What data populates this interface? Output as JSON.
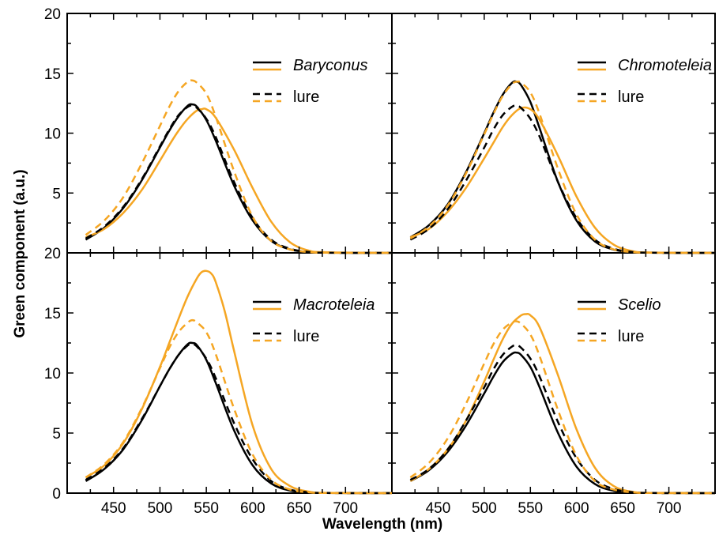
{
  "chart_data": {
    "type": "line",
    "ylabel": "Green component (a.u.)",
    "xlabel": "Wavelength (nm)",
    "xlim": [
      400,
      750
    ],
    "ylim": [
      0,
      20
    ],
    "xticks": [
      450,
      500,
      550,
      600,
      650,
      700
    ],
    "yticks": [
      0,
      5,
      10,
      15,
      20
    ],
    "grid": false,
    "legend_position": "top-right",
    "colors": {
      "black": "#000000",
      "orange": "#F5A623"
    },
    "panels": [
      {
        "id": "baryconus",
        "species_label": "Baryconus",
        "lure_label": "lure",
        "series": [
          {
            "name": "Baryconus",
            "color": "#000000",
            "style": "solid",
            "x": [
              420,
              440,
              460,
              480,
              500,
              510,
              520,
              530,
              535,
              540,
              550,
              560,
              580,
              600,
              620,
              640,
              660,
              680,
              750
            ],
            "y": [
              1.1,
              2.1,
              3.7,
              6.0,
              8.8,
              10.2,
              11.4,
              12.3,
              12.4,
              12.2,
              11.1,
              9.4,
              5.6,
              2.7,
              1.0,
              0.3,
              0.07,
              0.01,
              0
            ]
          },
          {
            "name": "Baryconus",
            "color": "#F5A623",
            "style": "solid",
            "x": [
              420,
              440,
              460,
              480,
              500,
              510,
              520,
              530,
              540,
              545,
              550,
              560,
              580,
              600,
              620,
              640,
              660,
              680,
              750
            ],
            "y": [
              1.3,
              2.0,
              3.3,
              5.2,
              7.7,
              9.0,
              10.2,
              11.2,
              11.9,
              12.0,
              12.0,
              11.3,
              8.6,
              5.4,
              2.6,
              0.9,
              0.2,
              0.05,
              0
            ]
          },
          {
            "name": "lure",
            "color": "#000000",
            "style": "dashed",
            "x": [
              420,
              440,
              460,
              480,
              500,
              510,
              520,
              530,
              535,
              540,
              550,
              560,
              580,
              600,
              620,
              640,
              660,
              680,
              750
            ],
            "y": [
              1.2,
              2.2,
              3.8,
              6.1,
              8.9,
              10.3,
              11.5,
              12.2,
              12.3,
              12.1,
              11.2,
              9.7,
              5.9,
              2.9,
              1.1,
              0.35,
              0.08,
              0.01,
              0
            ]
          },
          {
            "name": "lure",
            "color": "#F5A623",
            "style": "dashed",
            "x": [
              420,
              440,
              460,
              480,
              500,
              510,
              520,
              530,
              535,
              540,
              550,
              560,
              580,
              600,
              620,
              640,
              660,
              680,
              750
            ],
            "y": [
              1.5,
              2.7,
              4.6,
              7.4,
              10.6,
              12.2,
              13.5,
              14.3,
              14.4,
              14.2,
              13.3,
              11.4,
              6.8,
              3.0,
              1.0,
              0.3,
              0.07,
              0.01,
              0
            ]
          }
        ]
      },
      {
        "id": "chromoteleia",
        "species_label": "Chromoteleia",
        "lure_label": "lure",
        "series": [
          {
            "name": "Chromoteleia",
            "color": "#000000",
            "style": "solid",
            "x": [
              420,
              440,
              460,
              480,
              500,
              510,
              520,
              530,
              535,
              540,
              550,
              560,
              580,
              600,
              620,
              640,
              660,
              680,
              750
            ],
            "y": [
              1.3,
              2.3,
              4.0,
              6.7,
              10.0,
              11.7,
              13.2,
              14.2,
              14.3,
              14.0,
              12.6,
              10.4,
              5.9,
              2.7,
              0.95,
              0.28,
              0.06,
              0.01,
              0
            ]
          },
          {
            "name": "Chromoteleia",
            "color": "#F5A623",
            "style": "solid",
            "x": [
              420,
              440,
              460,
              480,
              500,
              510,
              520,
              530,
              540,
              550,
              560,
              580,
              600,
              620,
              640,
              660,
              680,
              750
            ],
            "y": [
              1.3,
              2.0,
              3.4,
              5.4,
              7.9,
              9.2,
              10.5,
              11.5,
              12.1,
              12.0,
              11.1,
              8.1,
              4.7,
              2.1,
              0.7,
              0.15,
              0.03,
              0
            ]
          },
          {
            "name": "lure",
            "color": "#000000",
            "style": "dashed",
            "x": [
              420,
              440,
              460,
              480,
              500,
              510,
              520,
              530,
              535,
              540,
              550,
              560,
              580,
              600,
              620,
              640,
              660,
              680,
              750
            ],
            "y": [
              1.1,
              2.0,
              3.6,
              6.0,
              8.8,
              10.3,
              11.5,
              12.2,
              12.3,
              12.1,
              11.2,
              9.7,
              5.9,
              2.9,
              1.1,
              0.35,
              0.08,
              0.01,
              0
            ]
          },
          {
            "name": "lure",
            "color": "#F5A623",
            "style": "dashed",
            "x": [
              420,
              440,
              460,
              480,
              500,
              510,
              520,
              530,
              535,
              540,
              550,
              560,
              580,
              600,
              620,
              640,
              660,
              680,
              750
            ],
            "y": [
              1.2,
              2.2,
              3.9,
              6.6,
              9.9,
              11.6,
              13.1,
              14.1,
              14.3,
              14.2,
              13.4,
              11.6,
              7.0,
              3.2,
              1.1,
              0.3,
              0.07,
              0.01,
              0
            ]
          }
        ]
      },
      {
        "id": "macroteleia",
        "species_label": "Macroteleia",
        "lure_label": "lure",
        "series": [
          {
            "name": "Macroteleia",
            "color": "#000000",
            "style": "solid",
            "x": [
              420,
              440,
              460,
              480,
              500,
              510,
              520,
              530,
              535,
              540,
              550,
              560,
              580,
              600,
              620,
              640,
              660,
              680,
              750
            ],
            "y": [
              1.0,
              2.0,
              3.6,
              6.0,
              8.9,
              10.3,
              11.5,
              12.4,
              12.5,
              12.3,
              11.1,
              9.2,
              5.2,
              2.3,
              0.8,
              0.22,
              0.05,
              0.01,
              0
            ]
          },
          {
            "name": "Macroteleia",
            "color": "#F5A623",
            "style": "solid",
            "x": [
              420,
              440,
              460,
              480,
              500,
              510,
              520,
              530,
              540,
              545,
              550,
              555,
              560,
              570,
              580,
              600,
              620,
              640,
              660,
              680,
              750
            ],
            "y": [
              1.3,
              2.3,
              4.1,
              6.9,
              10.5,
              12.5,
              14.5,
              16.4,
              17.9,
              18.4,
              18.5,
              18.3,
              17.6,
              15.1,
              11.8,
              5.6,
              2.0,
              0.6,
              0.13,
              0.02,
              0
            ]
          },
          {
            "name": "lure",
            "color": "#000000",
            "style": "dashed",
            "x": [
              420,
              440,
              460,
              480,
              500,
              510,
              520,
              530,
              535,
              540,
              550,
              560,
              580,
              600,
              620,
              640,
              660,
              680,
              750
            ],
            "y": [
              1.1,
              2.1,
              3.7,
              6.1,
              8.9,
              10.3,
              11.5,
              12.3,
              12.4,
              12.2,
              11.2,
              9.6,
              5.8,
              2.8,
              1.0,
              0.3,
              0.07,
              0.01,
              0
            ]
          },
          {
            "name": "lure",
            "color": "#F5A623",
            "style": "dashed",
            "x": [
              420,
              440,
              460,
              480,
              500,
              510,
              520,
              530,
              535,
              540,
              550,
              560,
              580,
              600,
              620,
              640,
              660,
              680,
              750
            ],
            "y": [
              1.3,
              2.4,
              4.2,
              7.0,
              10.4,
              12.1,
              13.4,
              14.2,
              14.4,
              14.2,
              13.4,
              11.6,
              7.0,
              3.2,
              1.1,
              0.3,
              0.07,
              0.01,
              0
            ]
          }
        ]
      },
      {
        "id": "scelio",
        "species_label": "Scelio",
        "lure_label": "lure",
        "series": [
          {
            "name": "Scelio",
            "color": "#000000",
            "style": "solid",
            "x": [
              420,
              440,
              460,
              480,
              500,
              510,
              520,
              530,
              535,
              540,
              550,
              560,
              580,
              600,
              620,
              640,
              660,
              680,
              750
            ],
            "y": [
              1.0,
              1.9,
              3.4,
              5.6,
              8.3,
              9.7,
              10.9,
              11.6,
              11.7,
              11.5,
              10.5,
              8.8,
              5.0,
              2.2,
              0.75,
              0.2,
              0.04,
              0.01,
              0
            ]
          },
          {
            "name": "Scelio",
            "color": "#F5A623",
            "style": "solid",
            "x": [
              420,
              440,
              460,
              480,
              500,
              510,
              520,
              530,
              540,
              545,
              550,
              560,
              580,
              600,
              620,
              640,
              660,
              680,
              750
            ],
            "y": [
              1.0,
              2.0,
              3.6,
              6.0,
              9.3,
              11.1,
              12.8,
              14.1,
              14.8,
              14.9,
              14.8,
              13.8,
              9.8,
              5.3,
              2.1,
              0.6,
              0.12,
              0.02,
              0
            ]
          },
          {
            "name": "lure",
            "color": "#000000",
            "style": "dashed",
            "x": [
              420,
              440,
              460,
              480,
              500,
              510,
              520,
              530,
              535,
              540,
              550,
              560,
              580,
              600,
              620,
              640,
              660,
              680,
              750
            ],
            "y": [
              1.1,
              2.0,
              3.6,
              6.0,
              8.8,
              10.3,
              11.5,
              12.2,
              12.3,
              12.1,
              11.2,
              9.7,
              5.9,
              2.9,
              1.1,
              0.35,
              0.08,
              0.01,
              0
            ]
          },
          {
            "name": "lure",
            "color": "#F5A623",
            "style": "dashed",
            "x": [
              420,
              440,
              460,
              480,
              500,
              510,
              520,
              530,
              535,
              540,
              550,
              560,
              580,
              600,
              620,
              640,
              660,
              680,
              750
            ],
            "y": [
              1.3,
              2.5,
              4.5,
              7.4,
              10.8,
              12.4,
              13.6,
              14.2,
              14.3,
              14.1,
              13.2,
              11.4,
              6.9,
              3.1,
              1.0,
              0.3,
              0.07,
              0.01,
              0
            ]
          }
        ]
      }
    ]
  }
}
